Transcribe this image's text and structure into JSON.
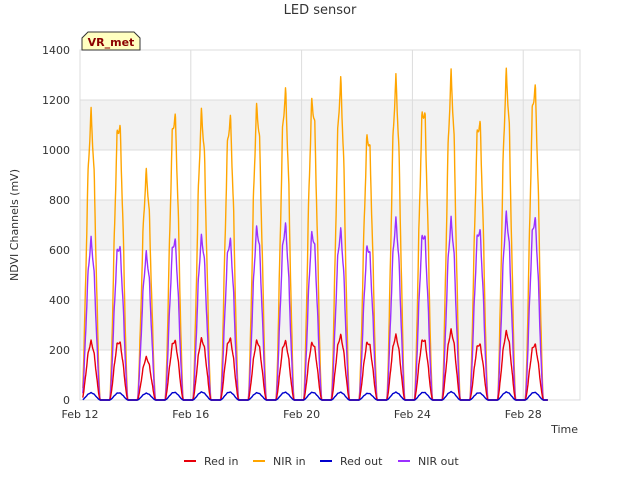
{
  "chart_data": {
    "type": "line",
    "title": "LED sensor",
    "xlabel": "Time",
    "ylabel": "NDVI Channels (mV)",
    "ylim": [
      0,
      1400
    ],
    "xlim": [
      12,
      30.05
    ],
    "yticks": [
      0,
      200,
      400,
      600,
      800,
      1000,
      1200,
      1400
    ],
    "xticks": [
      {
        "value": 12,
        "label": "Feb 12"
      },
      {
        "value": 16,
        "label": "Feb 16"
      },
      {
        "value": 20,
        "label": "Feb 20"
      },
      {
        "value": 24,
        "label": "Feb 24"
      },
      {
        "value": 28,
        "label": "Feb 28"
      }
    ],
    "grid": true,
    "legend_position": "bottom",
    "badge": "VR_met",
    "day_start": 12.4,
    "day_count": 17,
    "series": [
      {
        "name": "Red in",
        "color": "#e8000b",
        "daily_peaks": [
          240,
          245,
          175,
          248,
          252,
          255,
          245,
          242,
          238,
          265,
          242,
          265,
          255,
          285,
          235,
          280,
          232
        ]
      },
      {
        "name": "NIR in",
        "color": "#ffa500",
        "daily_peaks": [
          1170,
          1160,
          930,
          1190,
          1180,
          1170,
          1210,
          1270,
          1245,
          1305,
          1110,
          1310,
          1225,
          1325,
          1170,
          1335,
          1305
        ]
      },
      {
        "name": "Red out",
        "color": "#0000cd",
        "daily_peaks": [
          30,
          30,
          28,
          32,
          33,
          33,
          30,
          32,
          32,
          32,
          28,
          32,
          32,
          34,
          30,
          33,
          32
        ]
      },
      {
        "name": "NIR out",
        "color": "#9b30ff",
        "daily_peaks": [
          655,
          648,
          600,
          670,
          670,
          665,
          710,
          720,
          695,
          695,
          645,
          735,
          700,
          735,
          715,
          760,
          755
        ]
      }
    ]
  }
}
